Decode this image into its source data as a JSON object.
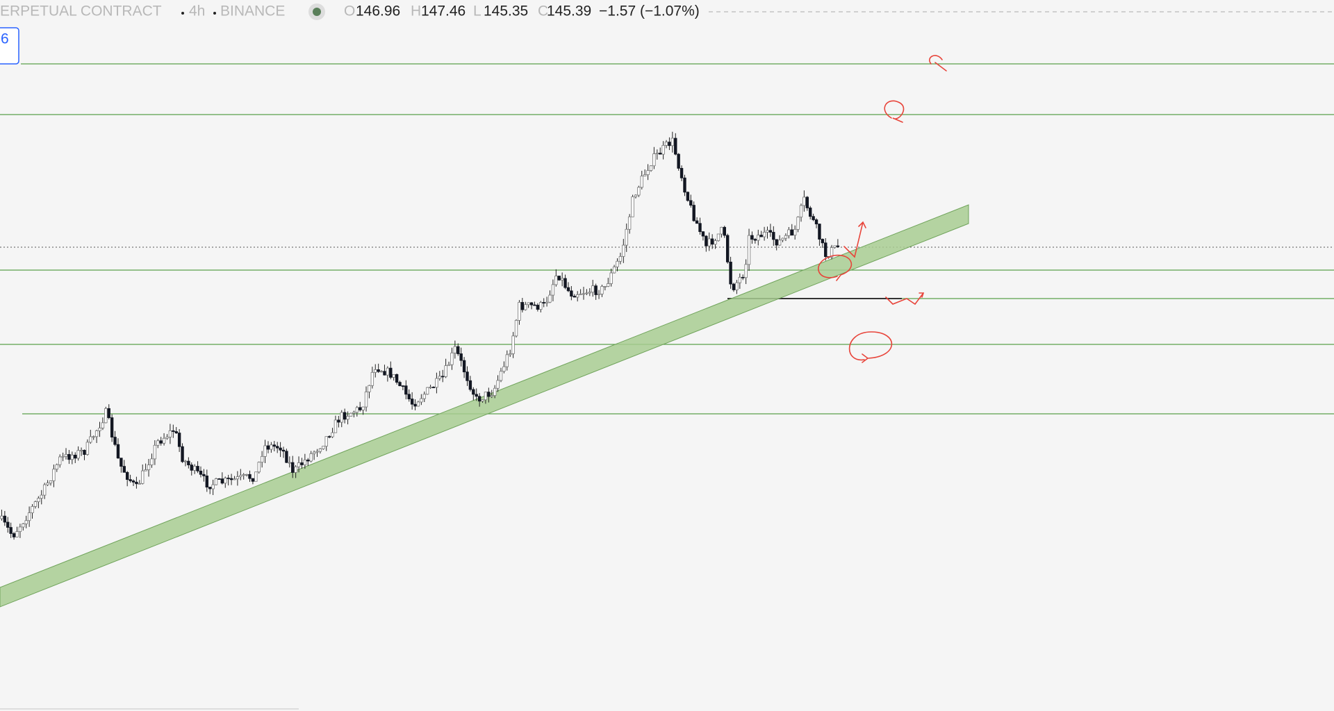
{
  "header": {
    "symbol": "ERPETUAL CONTRACT",
    "interval": "4h",
    "exchange": "BINANCE",
    "open_label": "O",
    "open": "146.96",
    "high_label": "H",
    "high": "147.46",
    "low_label": "L",
    "low": "145.35",
    "close_label": "C",
    "close": "145.39",
    "change": "−1.57 (−1.07%)"
  },
  "badge": "6"
}
